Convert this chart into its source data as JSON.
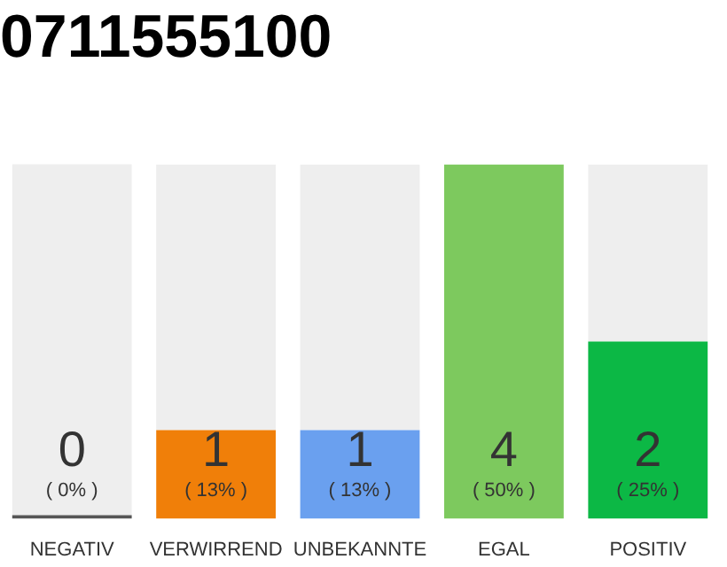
{
  "chart_data": {
    "type": "bar",
    "title": "0711555100",
    "stacked": true,
    "categories": [
      "NEGATIV",
      "VERWIRREND",
      "UNBEKANNTE",
      "EGAL",
      "POSITIV"
    ],
    "series": [
      {
        "colors": [
          "#555555",
          "#f07f09",
          "#6aa0ef",
          "#7dc95e",
          "#0cb845"
        ],
        "values": [
          0,
          1,
          1,
          4,
          2
        ],
        "value_labels": [
          "0\n( 0% )",
          "1\n( 13% )",
          "1\n( 13% )",
          "4\n( 50% )",
          "2\n( 25% )"
        ]
      },
      {
        "color": "#eeeeee",
        "values": [
          4,
          3,
          3,
          0,
          2
        ]
      }
    ],
    "ylim": [
      0,
      4
    ],
    "tick_labels": "x",
    "grid": false,
    "legend": false
  }
}
